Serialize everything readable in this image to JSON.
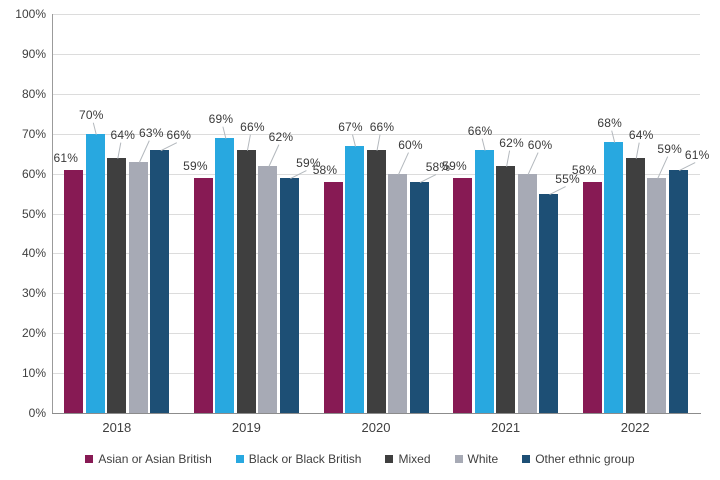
{
  "chart_data": {
    "type": "bar",
    "title": "",
    "categories": [
      "2018",
      "2019",
      "2020",
      "2021",
      "2022"
    ],
    "series": [
      {
        "name": "Asian or Asian British",
        "color": "#871A54",
        "values": [
          61,
          59,
          58,
          59,
          58
        ]
      },
      {
        "name": "Black or Black British",
        "color": "#28A8E0",
        "values": [
          70,
          69,
          67,
          66,
          68
        ]
      },
      {
        "name": "Mixed",
        "color": "#3F3F3F",
        "values": [
          64,
          66,
          66,
          62,
          64
        ]
      },
      {
        "name": "White",
        "color": "#A7AAB5",
        "values": [
          63,
          62,
          60,
          60,
          59
        ]
      },
      {
        "name": "Other ethnic group",
        "color": "#1D4F75",
        "values": [
          66,
          59,
          58,
          55,
          61
        ]
      }
    ],
    "value_suffix": "%",
    "ylim": [
      0,
      100
    ],
    "ytick_step": 10,
    "ytick_labels": [
      "0%",
      "10%",
      "20%",
      "30%",
      "40%",
      "50%",
      "60%",
      "70%",
      "80%",
      "90%",
      "100%"
    ],
    "xlabel": "",
    "ylabel": "",
    "grid": "horizontal",
    "grid_color": "#dcdcdc",
    "axis_color": "#8c8c8c",
    "text_color": "#3f3f3f",
    "leader_line_color": "#b3b8bd",
    "legend_position": "bottom",
    "data_labels": "above bars with callout leader lines"
  }
}
